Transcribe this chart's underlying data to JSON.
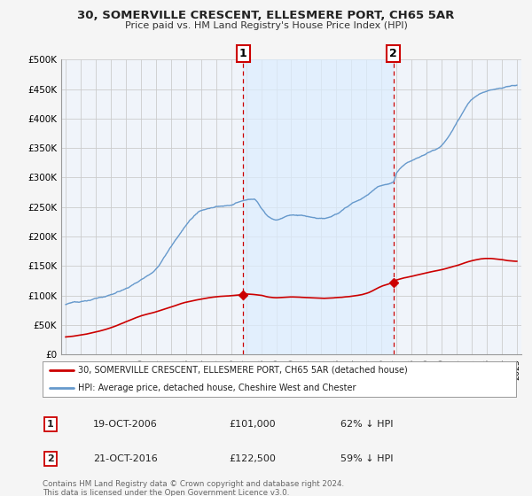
{
  "title": "30, SOMERVILLE CRESCENT, ELLESMERE PORT, CH65 5AR",
  "subtitle": "Price paid vs. HM Land Registry's House Price Index (HPI)",
  "ylim": [
    0,
    500000
  ],
  "yticks": [
    0,
    50000,
    100000,
    150000,
    200000,
    250000,
    300000,
    350000,
    400000,
    450000,
    500000
  ],
  "ytick_labels": [
    "£0",
    "£50K",
    "£100K",
    "£150K",
    "£200K",
    "£250K",
    "£300K",
    "£350K",
    "£400K",
    "£450K",
    "£500K"
  ],
  "sale1_date": "19-OCT-2006",
  "sale1_price": 101000,
  "sale1_pct": "62% ↓ HPI",
  "sale2_date": "21-OCT-2016",
  "sale2_price": 122500,
  "sale2_pct": "59% ↓ HPI",
  "legend_line1": "30, SOMERVILLE CRESCENT, ELLESMERE PORT, CH65 5AR (detached house)",
  "legend_line2": "HPI: Average price, detached house, Cheshire West and Chester",
  "footer": "Contains HM Land Registry data © Crown copyright and database right 2024.\nThis data is licensed under the Open Government Licence v3.0.",
  "price_line_color": "#cc0000",
  "hpi_line_color": "#6699cc",
  "hpi_fill_color": "#ddeeff",
  "vline_color": "#cc0000",
  "background_color": "#f5f5f5",
  "plot_bg_color": "#f0f4fa",
  "grid_color": "#cccccc",
  "sale1_x": 2006.79,
  "sale2_x": 2016.79,
  "xmin": 1995.0,
  "xmax": 2025.0,
  "hpi_base_points": [
    [
      1995.0,
      85000
    ],
    [
      1996.0,
      90000
    ],
    [
      1997.0,
      95000
    ],
    [
      1998.0,
      102000
    ],
    [
      1999.0,
      112000
    ],
    [
      2000.0,
      128000
    ],
    [
      2001.0,
      148000
    ],
    [
      2002.0,
      185000
    ],
    [
      2003.0,
      220000
    ],
    [
      2004.0,
      245000
    ],
    [
      2005.0,
      252000
    ],
    [
      2006.0,
      255000
    ],
    [
      2006.79,
      262000
    ],
    [
      2007.5,
      265000
    ],
    [
      2008.0,
      250000
    ],
    [
      2008.5,
      235000
    ],
    [
      2009.0,
      230000
    ],
    [
      2010.0,
      238000
    ],
    [
      2011.0,
      235000
    ],
    [
      2012.0,
      230000
    ],
    [
      2013.0,
      238000
    ],
    [
      2014.0,
      255000
    ],
    [
      2015.0,
      270000
    ],
    [
      2016.0,
      288000
    ],
    [
      2016.79,
      295000
    ],
    [
      2017.0,
      310000
    ],
    [
      2018.0,
      330000
    ],
    [
      2019.0,
      345000
    ],
    [
      2020.0,
      360000
    ],
    [
      2021.0,
      395000
    ],
    [
      2022.0,
      435000
    ],
    [
      2023.0,
      450000
    ],
    [
      2024.0,
      455000
    ],
    [
      2024.5,
      458000
    ],
    [
      2025.0,
      460000
    ]
  ],
  "price_base_points": [
    [
      1995.0,
      30000
    ],
    [
      1996.0,
      33000
    ],
    [
      1997.0,
      38000
    ],
    [
      1998.0,
      45000
    ],
    [
      1999.0,
      55000
    ],
    [
      2000.0,
      65000
    ],
    [
      2001.0,
      72000
    ],
    [
      2002.0,
      80000
    ],
    [
      2003.0,
      88000
    ],
    [
      2004.0,
      93000
    ],
    [
      2005.0,
      97000
    ],
    [
      2006.0,
      99000
    ],
    [
      2006.79,
      101000
    ],
    [
      2007.0,
      102000
    ],
    [
      2008.0,
      100000
    ],
    [
      2008.5,
      97000
    ],
    [
      2009.0,
      96000
    ],
    [
      2010.0,
      97000
    ],
    [
      2011.0,
      96000
    ],
    [
      2012.0,
      95000
    ],
    [
      2013.0,
      96000
    ],
    [
      2014.0,
      98000
    ],
    [
      2015.0,
      103000
    ],
    [
      2016.0,
      115000
    ],
    [
      2016.79,
      122500
    ],
    [
      2017.0,
      126000
    ],
    [
      2018.0,
      132000
    ],
    [
      2019.0,
      138000
    ],
    [
      2020.0,
      143000
    ],
    [
      2021.0,
      150000
    ],
    [
      2022.0,
      158000
    ],
    [
      2023.0,
      162000
    ],
    [
      2024.0,
      160000
    ],
    [
      2024.5,
      158000
    ],
    [
      2025.0,
      157000
    ]
  ]
}
